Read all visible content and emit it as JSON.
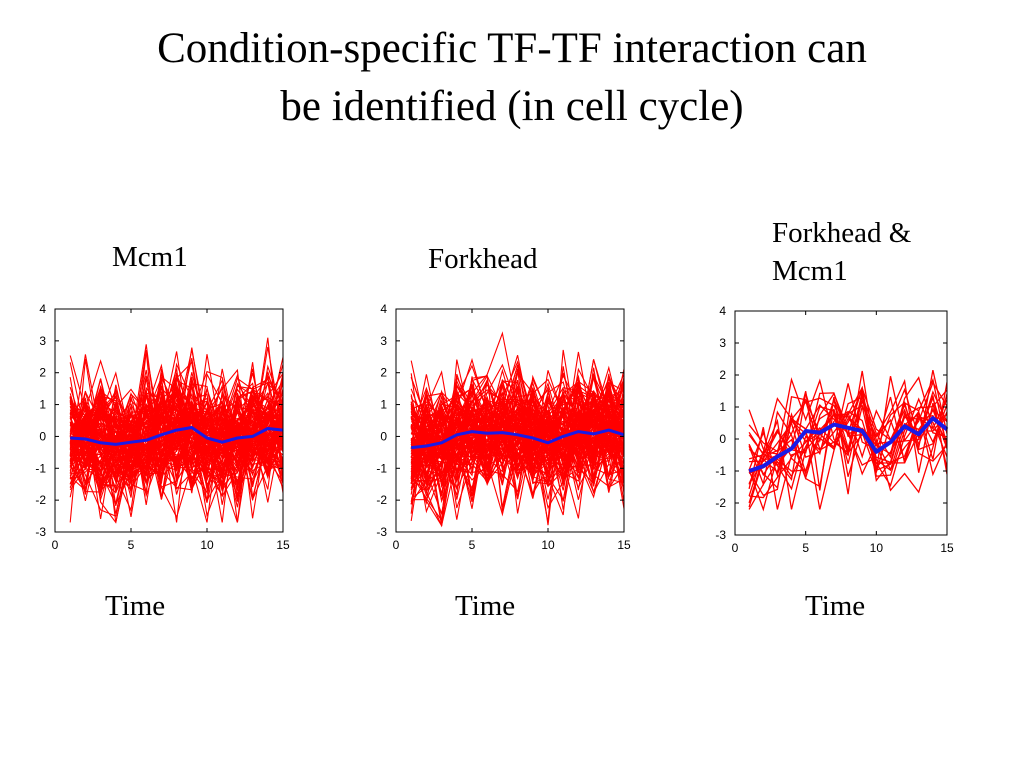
{
  "slide": {
    "title_line1": "Condition-specific TF-TF interaction can",
    "title_line2": "be identified (in cell cycle)"
  },
  "colors": {
    "profiles": "#ff0000",
    "mean": "#1a1ae6",
    "axes": "#000000"
  },
  "chart_data": [
    {
      "type": "line",
      "title": "Mcm1",
      "xlabel": "Time",
      "ylabel": "",
      "xlim": [
        0,
        15
      ],
      "ylim": [
        -3,
        4
      ],
      "xticks": [
        0,
        5,
        10,
        15
      ],
      "yticks": [
        -3,
        -2,
        -1,
        0,
        1,
        2,
        3,
        4
      ],
      "x": [
        1,
        2,
        3,
        4,
        5,
        6,
        7,
        8,
        9,
        10,
        11,
        12,
        13,
        14,
        15
      ],
      "series": [
        {
          "role": "mean",
          "values": [
            -0.05,
            -0.08,
            -0.2,
            -0.25,
            -0.18,
            -0.12,
            0.05,
            0.2,
            0.28,
            -0.05,
            -0.18,
            -0.05,
            0.0,
            0.25,
            0.2
          ]
        },
        {
          "role": "profiles",
          "count": 120,
          "spread": [
            -2.7,
            3.3
          ]
        }
      ]
    },
    {
      "type": "line",
      "title": "Forkhead",
      "xlabel": "Time",
      "ylabel": "",
      "xlim": [
        0,
        15
      ],
      "ylim": [
        -3,
        4
      ],
      "xticks": [
        0,
        5,
        10,
        15
      ],
      "yticks": [
        -3,
        -2,
        -1,
        0,
        1,
        2,
        3,
        4
      ],
      "x": [
        1,
        2,
        3,
        4,
        5,
        6,
        7,
        8,
        9,
        10,
        11,
        12,
        13,
        14,
        15
      ],
      "series": [
        {
          "role": "mean",
          "values": [
            -0.35,
            -0.3,
            -0.2,
            0.05,
            0.15,
            0.1,
            0.12,
            0.05,
            -0.05,
            -0.2,
            0.0,
            0.15,
            0.08,
            0.2,
            0.05
          ]
        },
        {
          "role": "profiles",
          "count": 120,
          "spread": [
            -2.8,
            3.4
          ]
        }
      ]
    },
    {
      "type": "line",
      "title": "Forkhead & Mcm1",
      "xlabel": "Time",
      "ylabel": "",
      "xlim": [
        0,
        15
      ],
      "ylim": [
        -3,
        4
      ],
      "xticks": [
        0,
        5,
        10,
        15
      ],
      "yticks": [
        -3,
        -2,
        -1,
        0,
        1,
        2,
        3,
        4
      ],
      "x": [
        1,
        2,
        3,
        4,
        5,
        6,
        7,
        8,
        9,
        10,
        11,
        12,
        13,
        14,
        15
      ],
      "series": [
        {
          "role": "mean",
          "values": [
            -1.0,
            -0.85,
            -0.55,
            -0.3,
            0.25,
            0.2,
            0.45,
            0.35,
            0.25,
            -0.4,
            -0.1,
            0.4,
            0.15,
            0.65,
            0.3
          ]
        },
        {
          "role": "profiles",
          "count": 22,
          "spread": [
            -2.2,
            3.2
          ]
        }
      ]
    }
  ]
}
